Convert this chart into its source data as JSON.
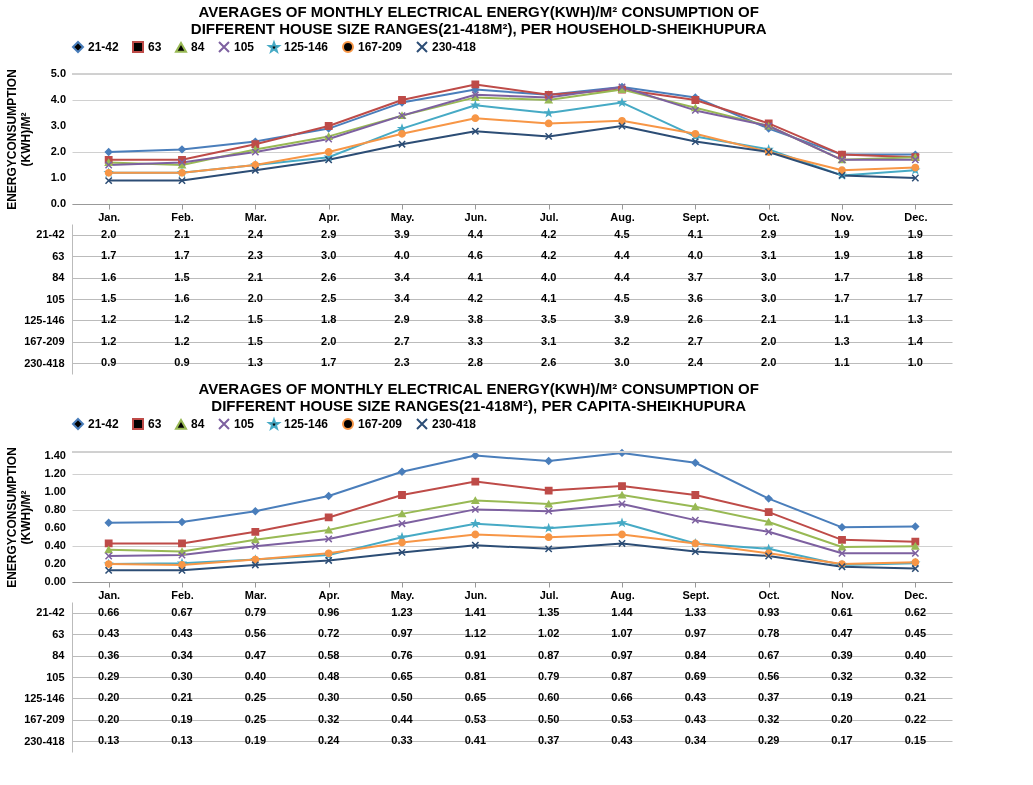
{
  "chart_data": [
    {
      "type": "line",
      "title": "AVERAGES OF MONTHLY ELECTRICAL ENERGY(KWH)/M² CONSUMPTION OF DIFFERENT HOUSE SIZE RANGES(21-418M²), PER HOUSEHOLD-SHEIKHUPURA",
      "ylabel": "ENERGYCONSUMPTION (KWH)/M²",
      "categories": [
        "Jan.",
        "Feb.",
        "Mar.",
        "Apr.",
        "May.",
        "Jun.",
        "Jul.",
        "Aug.",
        "Sept.",
        "Oct.",
        "Nov.",
        "Dec."
      ],
      "ylim": [
        0,
        5
      ],
      "yticks": [
        {
          "value": 0,
          "label": "0.0"
        },
        {
          "value": 1,
          "label": "1.0"
        },
        {
          "value": 2,
          "label": "2.0"
        },
        {
          "value": 3,
          "label": "3.0"
        },
        {
          "value": 4,
          "label": "4.0"
        },
        {
          "value": 5,
          "label": "5.0"
        }
      ],
      "grid": "y",
      "legend": "top",
      "series": [
        {
          "name": "21-42",
          "color": "#4a7ebb",
          "marker": "diamond",
          "values": [
            2.0,
            2.1,
            2.4,
            2.9,
            3.9,
            4.4,
            4.2,
            4.5,
            4.1,
            2.9,
            1.9,
            1.9
          ],
          "value_labels": [
            "2.0",
            "2.1",
            "2.4",
            "2.9",
            "3.9",
            "4.4",
            "4.2",
            "4.5",
            "4.1",
            "2.9",
            "1.9",
            "1.9"
          ]
        },
        {
          "name": "63",
          "color": "#be4b48",
          "marker": "square",
          "values": [
            1.7,
            1.7,
            2.3,
            3.0,
            4.0,
            4.6,
            4.2,
            4.4,
            4.0,
            3.1,
            1.9,
            1.8
          ],
          "value_labels": [
            "1.7",
            "1.7",
            "2.3",
            "3.0",
            "4.0",
            "4.6",
            "4.2",
            "4.4",
            "4.0",
            "3.1",
            "1.9",
            "1.8"
          ]
        },
        {
          "name": "84",
          "color": "#98b954",
          "marker": "triangle",
          "values": [
            1.6,
            1.5,
            2.1,
            2.6,
            3.4,
            4.1,
            4.0,
            4.4,
            3.7,
            3.0,
            1.7,
            1.8
          ],
          "value_labels": [
            "1.6",
            "1.5",
            "2.1",
            "2.6",
            "3.4",
            "4.1",
            "4.0",
            "4.4",
            "3.7",
            "3.0",
            "1.7",
            "1.8"
          ]
        },
        {
          "name": "105",
          "color": "#7d60a0",
          "marker": "cross",
          "values": [
            1.5,
            1.6,
            2.0,
            2.5,
            3.4,
            4.2,
            4.1,
            4.5,
            3.6,
            3.0,
            1.7,
            1.7
          ],
          "value_labels": [
            "1.5",
            "1.6",
            "2.0",
            "2.5",
            "3.4",
            "4.2",
            "4.1",
            "4.5",
            "3.6",
            "3.0",
            "1.7",
            "1.7"
          ]
        },
        {
          "name": "125-146",
          "color": "#46aac5",
          "marker": "star",
          "values": [
            1.2,
            1.2,
            1.5,
            1.8,
            2.9,
            3.8,
            3.5,
            3.9,
            2.6,
            2.1,
            1.1,
            1.3
          ],
          "value_labels": [
            "1.2",
            "1.2",
            "1.5",
            "1.8",
            "2.9",
            "3.8",
            "3.5",
            "3.9",
            "2.6",
            "2.1",
            "1.1",
            "1.3"
          ]
        },
        {
          "name": "167-209",
          "color": "#f79646",
          "marker": "circle",
          "values": [
            1.2,
            1.2,
            1.5,
            2.0,
            2.7,
            3.3,
            3.1,
            3.2,
            2.7,
            2.0,
            1.3,
            1.4
          ],
          "value_labels": [
            "1.2",
            "1.2",
            "1.5",
            "2.0",
            "2.7",
            "3.3",
            "3.1",
            "3.2",
            "2.7",
            "2.0",
            "1.3",
            "1.4"
          ]
        },
        {
          "name": "230-418",
          "color": "#2c4d75",
          "marker": "cross",
          "values": [
            0.9,
            0.9,
            1.3,
            1.7,
            2.3,
            2.8,
            2.6,
            3.0,
            2.4,
            2.0,
            1.1,
            1.0
          ],
          "value_labels": [
            "0.9",
            "0.9",
            "1.3",
            "1.7",
            "2.3",
            "2.8",
            "2.6",
            "3.0",
            "2.4",
            "2.0",
            "1.1",
            "1.0"
          ]
        }
      ]
    },
    {
      "type": "line",
      "title": "AVERAGES OF MONTHLY ELECTRICAL ENERGY(KWH)/M² CONSUMPTION OF DIFFERENT HOUSE SIZE RANGES(21-418M²), PER CAPITA-SHEIKHUPURA",
      "ylabel": "ENERGYCONSUMPTION (KWH)/M²",
      "categories": [
        "Jan.",
        "Feb.",
        "Mar.",
        "Apr.",
        "May.",
        "Jun.",
        "Jul.",
        "Aug.",
        "Sept.",
        "Oct.",
        "Nov.",
        "Dec."
      ],
      "ylim": [
        0,
        1.45
      ],
      "yticks": [
        {
          "value": 0,
          "label": "0.00"
        },
        {
          "value": 0.2,
          "label": "0.20"
        },
        {
          "value": 0.4,
          "label": "0.40"
        },
        {
          "value": 0.6,
          "label": "0.60"
        },
        {
          "value": 0.8,
          "label": "0.80"
        },
        {
          "value": 1.0,
          "label": "1.00"
        },
        {
          "value": 1.2,
          "label": "1.20"
        },
        {
          "value": 1.4,
          "label": "1.40"
        }
      ],
      "grid": "y",
      "legend": "top",
      "series": [
        {
          "name": "21-42",
          "color": "#4a7ebb",
          "marker": "diamond",
          "values": [
            0.66,
            0.67,
            0.79,
            0.96,
            1.23,
            1.41,
            1.35,
            1.44,
            1.33,
            0.93,
            0.61,
            0.62
          ],
          "value_labels": [
            "0.66",
            "0.67",
            "0.79",
            "0.96",
            "1.23",
            "1.41",
            "1.35",
            "1.44",
            "1.33",
            "0.93",
            "0.61",
            "0.62"
          ]
        },
        {
          "name": "63",
          "color": "#be4b48",
          "marker": "square",
          "values": [
            0.43,
            0.43,
            0.56,
            0.72,
            0.97,
            1.12,
            1.02,
            1.07,
            0.97,
            0.78,
            0.47,
            0.45
          ],
          "value_labels": [
            "0.43",
            "0.43",
            "0.56",
            "0.72",
            "0.97",
            "1.12",
            "1.02",
            "1.07",
            "0.97",
            "0.78",
            "0.47",
            "0.45"
          ]
        },
        {
          "name": "84",
          "color": "#98b954",
          "marker": "triangle",
          "values": [
            0.36,
            0.34,
            0.47,
            0.58,
            0.76,
            0.91,
            0.87,
            0.97,
            0.84,
            0.67,
            0.39,
            0.4
          ],
          "value_labels": [
            "0.36",
            "0.34",
            "0.47",
            "0.58",
            "0.76",
            "0.91",
            "0.87",
            "0.97",
            "0.84",
            "0.67",
            "0.39",
            "0.40"
          ]
        },
        {
          "name": "105",
          "color": "#7d60a0",
          "marker": "cross",
          "values": [
            0.29,
            0.3,
            0.4,
            0.48,
            0.65,
            0.81,
            0.79,
            0.87,
            0.69,
            0.56,
            0.32,
            0.32
          ],
          "value_labels": [
            "0.29",
            "0.30",
            "0.40",
            "0.48",
            "0.65",
            "0.81",
            "0.79",
            "0.87",
            "0.69",
            "0.56",
            "0.32",
            "0.32"
          ]
        },
        {
          "name": "125-146",
          "color": "#46aac5",
          "marker": "star",
          "values": [
            0.2,
            0.21,
            0.25,
            0.3,
            0.5,
            0.65,
            0.6,
            0.66,
            0.43,
            0.37,
            0.19,
            0.21
          ],
          "value_labels": [
            "0.20",
            "0.21",
            "0.25",
            "0.30",
            "0.50",
            "0.65",
            "0.60",
            "0.66",
            "0.43",
            "0.37",
            "0.19",
            "0.21"
          ]
        },
        {
          "name": "167-209",
          "color": "#f79646",
          "marker": "circle",
          "values": [
            0.2,
            0.19,
            0.25,
            0.32,
            0.44,
            0.53,
            0.5,
            0.53,
            0.43,
            0.32,
            0.2,
            0.22
          ],
          "value_labels": [
            "0.20",
            "0.19",
            "0.25",
            "0.32",
            "0.44",
            "0.53",
            "0.50",
            "0.53",
            "0.43",
            "0.32",
            "0.20",
            "0.22"
          ]
        },
        {
          "name": "230-418",
          "color": "#2c4d75",
          "marker": "cross",
          "values": [
            0.13,
            0.13,
            0.19,
            0.24,
            0.33,
            0.41,
            0.37,
            0.43,
            0.34,
            0.29,
            0.17,
            0.15
          ],
          "value_labels": [
            "0.13",
            "0.13",
            "0.19",
            "0.24",
            "0.33",
            "0.41",
            "0.37",
            "0.43",
            "0.34",
            "0.29",
            "0.17",
            "0.15"
          ]
        }
      ]
    }
  ]
}
